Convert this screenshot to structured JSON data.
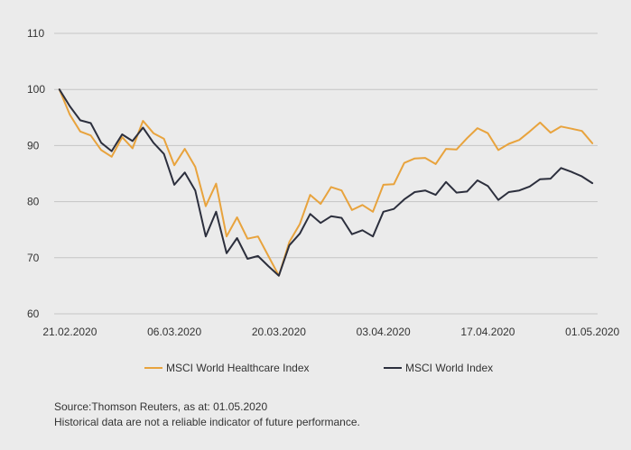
{
  "chart_data": {
    "type": "line",
    "title": "",
    "xlabel": "",
    "ylabel": "",
    "ylim": [
      60,
      110
    ],
    "yticks": [
      60,
      70,
      80,
      90,
      100,
      110
    ],
    "x_tick_labels": [
      "21.02.2020",
      "06.03.2020",
      "20.03.2020",
      "03.04.2020",
      "17.04.2020",
      "01.05.2020"
    ],
    "x_tick_positions": [
      1,
      11,
      21,
      31,
      41,
      51
    ],
    "xlim": [
      -0.5,
      51.5
    ],
    "grid": "horizontal",
    "legend_position": "bottom",
    "x": [
      0,
      1,
      2,
      3,
      4,
      5,
      6,
      7,
      8,
      9,
      10,
      11,
      12,
      13,
      14,
      15,
      16,
      17,
      18,
      19,
      20,
      21,
      22,
      23,
      24,
      25,
      26,
      27,
      28,
      29,
      30,
      31,
      32,
      33,
      34,
      35,
      36,
      37,
      38,
      39,
      40,
      41,
      42,
      43,
      44,
      45,
      46,
      47,
      48,
      49,
      50,
      51
    ],
    "series": [
      {
        "name": "MSCI World Healthcare Index",
        "color": "#e8a33d",
        "values": [
          100.0,
          95.5,
          92.5,
          91.8,
          89.2,
          88.0,
          91.5,
          89.5,
          94.4,
          92.2,
          91.2,
          86.5,
          89.4,
          86.2,
          79.2,
          83.2,
          73.8,
          77.2,
          73.4,
          73.8,
          70.3,
          66.8,
          72.8,
          76.0,
          81.2,
          79.6,
          82.6,
          82.0,
          78.5,
          79.4,
          78.2,
          83.0,
          83.1,
          86.9,
          87.7,
          87.8,
          86.7,
          89.4,
          89.3,
          91.3,
          93.1,
          92.2,
          89.2,
          90.3,
          91.0,
          92.5,
          94.1,
          92.3,
          93.4,
          93.0,
          92.6,
          90.4
        ],
        "line_style": "solid"
      },
      {
        "name": "MSCI World Index",
        "color": "#2c2f3d",
        "values": [
          100.0,
          97.0,
          94.5,
          94.0,
          90.5,
          89.0,
          92.0,
          90.8,
          93.2,
          90.5,
          88.5,
          83.0,
          85.2,
          82.0,
          73.8,
          78.2,
          70.8,
          73.5,
          69.8,
          70.3,
          68.5,
          66.8,
          72.2,
          74.3,
          77.8,
          76.2,
          77.4,
          77.1,
          74.2,
          74.9,
          73.8,
          78.2,
          78.7,
          80.4,
          81.7,
          82.0,
          81.2,
          83.5,
          81.6,
          81.8,
          83.8,
          82.8,
          80.3,
          81.7,
          82.0,
          82.7,
          84.0,
          84.1,
          86.0,
          85.3,
          84.5,
          83.3
        ],
        "line_style": "solid"
      }
    ]
  },
  "footnotes": {
    "source": "Source:Thomson Reuters, as at: 01.05.2020",
    "disclaimer": "Historical data are not a reliable indicator of future performance."
  }
}
